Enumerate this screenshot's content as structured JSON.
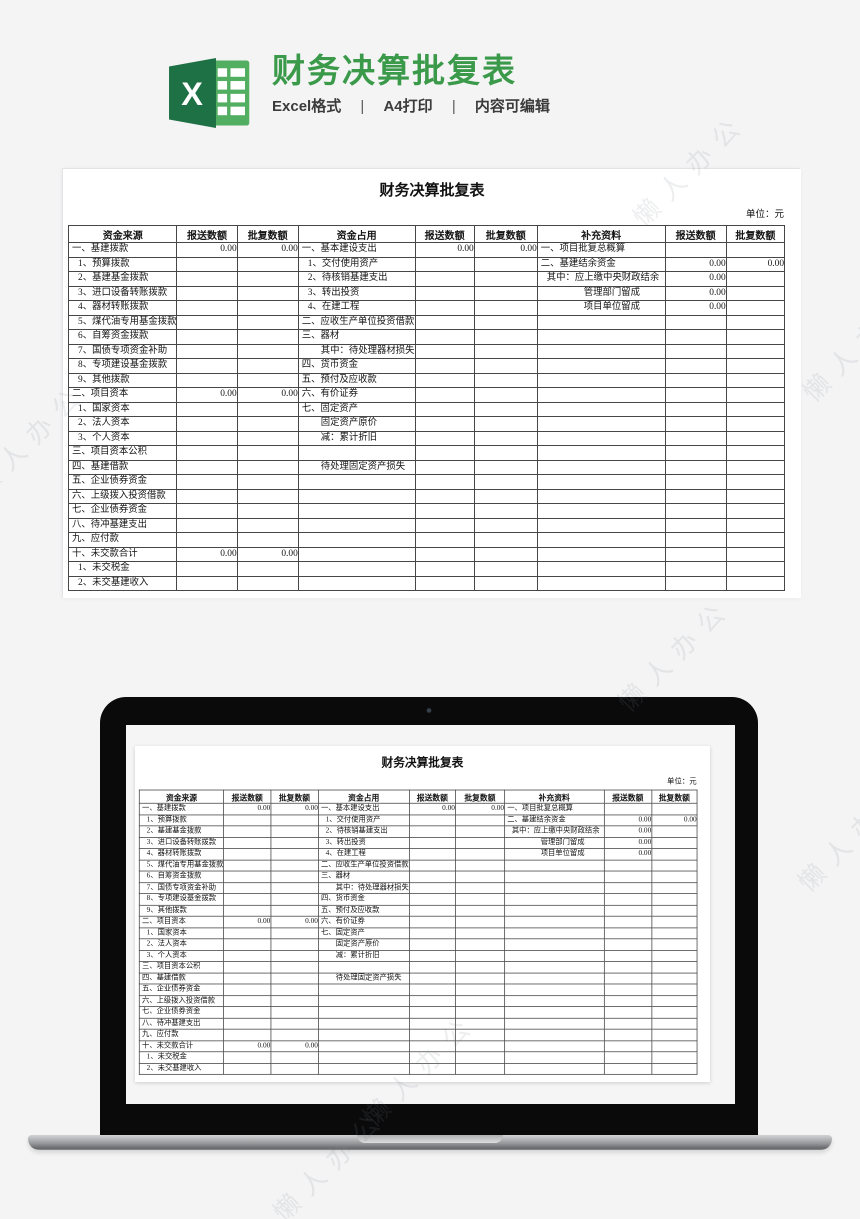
{
  "page": {
    "watermark_text": "懒人办公"
  },
  "colors": {
    "accent_green": "#3a9a4a",
    "icon_dark_green": "#1e7145",
    "icon_light_green": "#52ae61",
    "page_bg": "#f4f4f5"
  },
  "header": {
    "icon": "excel-logo",
    "title": "财务决算批复表",
    "subtitle": {
      "format": "Excel格式",
      "sep": "|",
      "print": "A4打印",
      "editable": "内容可编辑"
    }
  },
  "sheet": {
    "title": "财务决算批复表",
    "unit_label": "单位：元",
    "columns": [
      "资金来源",
      "报送数额",
      "批复数额",
      "资金占用",
      "报送数额",
      "批复数额",
      "补充资料",
      "报送数额",
      "批复数额"
    ],
    "rows": [
      [
        [
          "一、基建拨款",
          0
        ],
        "0.00",
        "0.00",
        [
          "一、基本建设支出",
          0
        ],
        "0.00",
        "0.00",
        [
          "一、项目批复总概算",
          0
        ],
        "",
        ""
      ],
      [
        [
          "1、预算拨款",
          1
        ],
        "",
        "",
        [
          "1、交付使用资产",
          1
        ],
        "",
        "",
        [
          "二、基建结余资金",
          0
        ],
        "0.00",
        "0.00"
      ],
      [
        [
          "2、基建基金拨款",
          1
        ],
        "",
        "",
        [
          "2、待核销基建支出",
          1
        ],
        "",
        "",
        [
          "其中：应上缴中央财政结余",
          1
        ],
        "0.00",
        ""
      ],
      [
        [
          "3、进口设备转账拨款",
          1
        ],
        "",
        "",
        [
          "3、转出投资",
          1
        ],
        "",
        "",
        [
          "管理部门留成",
          4
        ],
        "0.00",
        ""
      ],
      [
        [
          "4、器材转账拨款",
          1
        ],
        "",
        "",
        [
          "4、在建工程",
          1
        ],
        "",
        "",
        [
          "项目单位留成",
          4
        ],
        "0.00",
        ""
      ],
      [
        [
          "5、煤代油专用基金拨款",
          1
        ],
        "",
        "",
        [
          "二、应收生产单位投资借款",
          0
        ],
        "",
        "",
        [
          "",
          0
        ],
        "",
        ""
      ],
      [
        [
          "6、自筹资金拨款",
          1
        ],
        "",
        "",
        [
          "三、器材",
          0
        ],
        "",
        "",
        [
          "",
          0
        ],
        "",
        ""
      ],
      [
        [
          "7、国债专项资金补助",
          1
        ],
        "",
        "",
        [
          "其中：待处理器材损失",
          2
        ],
        "",
        "",
        [
          "",
          0
        ],
        "",
        ""
      ],
      [
        [
          "8、专项建设基金拨款",
          1
        ],
        "",
        "",
        [
          "四、货币资金",
          0
        ],
        "",
        "",
        [
          "",
          0
        ],
        "",
        ""
      ],
      [
        [
          "9、其他拨款",
          1
        ],
        "",
        "",
        [
          "五、预付及应收款",
          0
        ],
        "",
        "",
        [
          "",
          0
        ],
        "",
        ""
      ],
      [
        [
          "二、项目资本",
          0
        ],
        "0.00",
        "0.00",
        [
          "六、有价证券",
          0
        ],
        "",
        "",
        [
          "",
          0
        ],
        "",
        ""
      ],
      [
        [
          "1、国家资本",
          1
        ],
        "",
        "",
        [
          "七、固定资产",
          0
        ],
        "",
        "",
        [
          "",
          0
        ],
        "",
        ""
      ],
      [
        [
          "2、法人资本",
          1
        ],
        "",
        "",
        [
          "固定资产原价",
          2
        ],
        "",
        "",
        [
          "",
          0
        ],
        "",
        ""
      ],
      [
        [
          "3、个人资本",
          1
        ],
        "",
        "",
        [
          "减：累计折旧",
          2
        ],
        "",
        "",
        [
          "",
          0
        ],
        "",
        ""
      ],
      [
        [
          "三、项目资本公积",
          0
        ],
        "",
        "",
        [
          "",
          0
        ],
        "",
        "",
        [
          "",
          0
        ],
        "",
        ""
      ],
      [
        [
          "四、基建借款",
          0
        ],
        "",
        "",
        [
          "待处理固定资产损失",
          2
        ],
        "",
        "",
        [
          "",
          0
        ],
        "",
        ""
      ],
      [
        [
          "五、企业债券资金",
          0
        ],
        "",
        "",
        [
          "",
          0
        ],
        "",
        "",
        [
          "",
          0
        ],
        "",
        ""
      ],
      [
        [
          "六、上级拨入投资借款",
          0
        ],
        "",
        "",
        [
          "",
          0
        ],
        "",
        "",
        [
          "",
          0
        ],
        "",
        ""
      ],
      [
        [
          "七、企业债券资金",
          0
        ],
        "",
        "",
        [
          "",
          0
        ],
        "",
        "",
        [
          "",
          0
        ],
        "",
        ""
      ],
      [
        [
          "八、待冲基建支出",
          0
        ],
        "",
        "",
        [
          "",
          0
        ],
        "",
        "",
        [
          "",
          0
        ],
        "",
        ""
      ],
      [
        [
          "九、应付款",
          0
        ],
        "",
        "",
        [
          "",
          0
        ],
        "",
        "",
        [
          "",
          0
        ],
        "",
        ""
      ],
      [
        [
          "十、未交款合计",
          0
        ],
        "0.00",
        "0.00",
        [
          "",
          0
        ],
        "",
        "",
        [
          "",
          0
        ],
        "",
        ""
      ],
      [
        [
          "1、未交税金",
          1
        ],
        "",
        "",
        [
          "",
          0
        ],
        "",
        "",
        [
          "",
          0
        ],
        "",
        ""
      ],
      [
        [
          "2、未交基建收入",
          1
        ],
        "",
        "",
        [
          "",
          0
        ],
        "",
        "",
        [
          "",
          0
        ],
        "",
        ""
      ]
    ]
  }
}
